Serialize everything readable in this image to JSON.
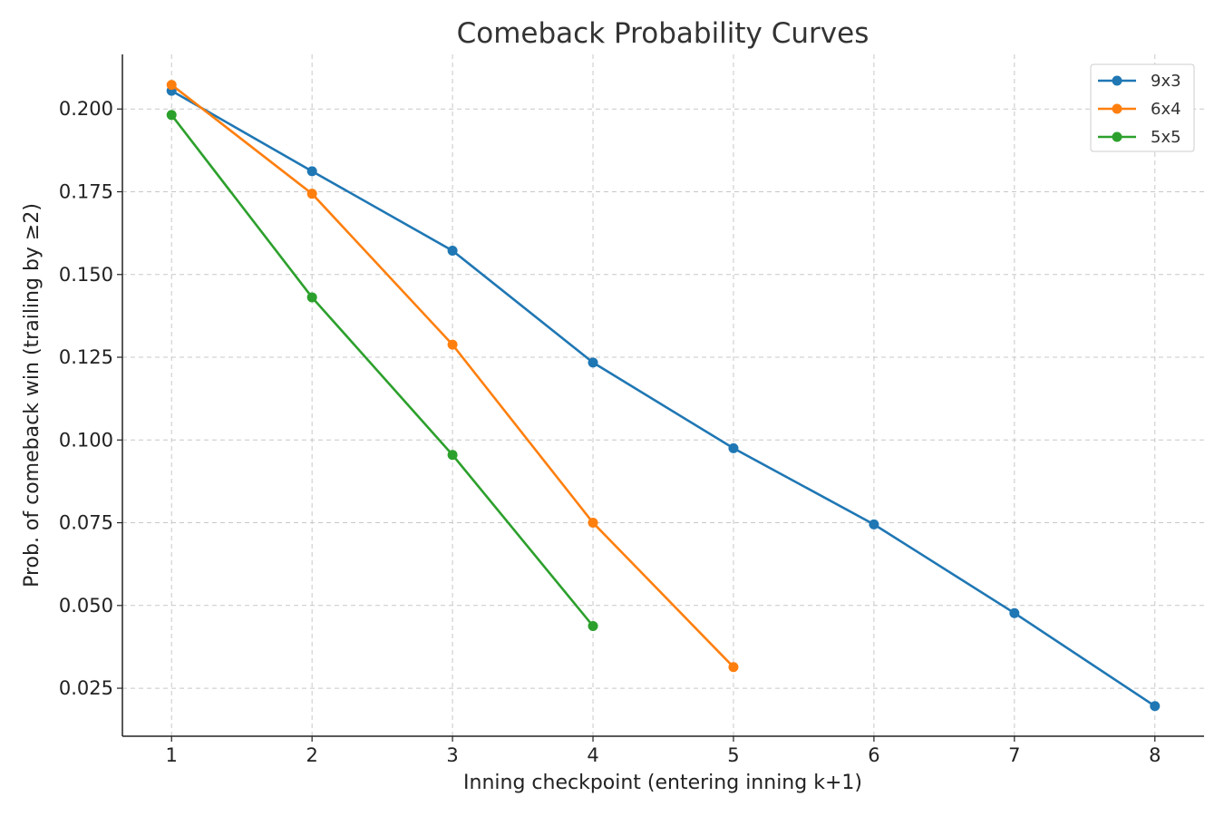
{
  "chart_data": {
    "type": "line",
    "title": "Comeback Probability Curves",
    "xlabel": "Inning checkpoint (entering inning k+1)",
    "ylabel": "Prob. of comeback win (trailing by ≥2)",
    "x_ticks": [
      1,
      2,
      3,
      4,
      5,
      6,
      7,
      8
    ],
    "y_ticks": [
      0.025,
      0.05,
      0.075,
      0.1,
      0.125,
      0.15,
      0.175,
      0.2
    ],
    "y_tick_labels": [
      "0.025",
      "0.050",
      "0.075",
      "0.100",
      "0.125",
      "0.150",
      "0.175",
      "0.200"
    ],
    "xlim": [
      0.65,
      8.35
    ],
    "ylim": [
      0.0105,
      0.2165
    ],
    "grid": true,
    "grid_style": "dashed",
    "legend_position": "top-right",
    "series": [
      {
        "name": "9x3",
        "color": "#1f77b4",
        "x": [
          1,
          2,
          3,
          4,
          5,
          6,
          7,
          8
        ],
        "y": [
          0.2055,
          0.1812,
          0.1572,
          0.1234,
          0.0975,
          0.0745,
          0.0477,
          0.0196
        ]
      },
      {
        "name": "6x4",
        "color": "#ff7f0e",
        "x": [
          1,
          2,
          3,
          4,
          5
        ],
        "y": [
          0.2073,
          0.1744,
          0.1288,
          0.075,
          0.0314
        ]
      },
      {
        "name": "5x5",
        "color": "#2ca02c",
        "x": [
          1,
          2,
          3,
          4
        ],
        "y": [
          0.1982,
          0.1431,
          0.0955,
          0.0438
        ]
      }
    ]
  }
}
